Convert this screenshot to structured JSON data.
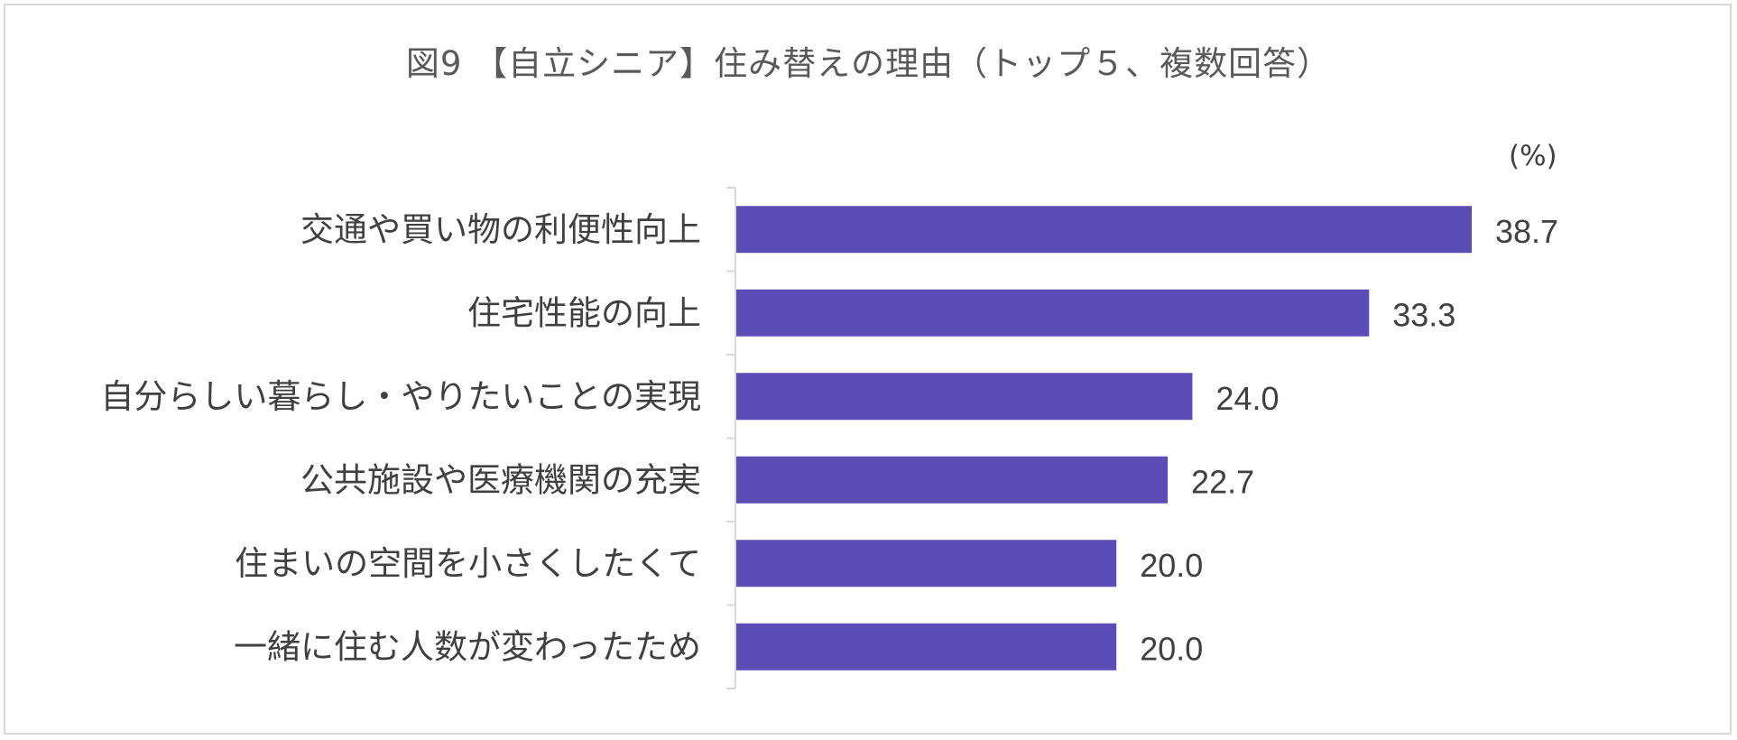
{
  "chart_data": {
    "type": "bar",
    "orientation": "horizontal",
    "title": "図9 【自立シニア】住み替えの理由（トップ５、複数回答）",
    "unit_label": "(%)",
    "categories": [
      "交通や買い物の利便性向上",
      "住宅性能の向上",
      "自分らしい暮らし・やりたいことの実現",
      "公共施設や医療機関の充実",
      "住まいの空間を小さくしたくて",
      "一緒に住む人数が変わったため"
    ],
    "values": [
      38.7,
      33.3,
      24.0,
      22.7,
      20.0,
      20.0
    ],
    "value_labels": [
      "38.7",
      "33.3",
      "24.0",
      "22.7",
      "20.0",
      "20.0"
    ],
    "bar_color": "#5b4db5",
    "xlim": [
      0,
      45
    ],
    "grid": false,
    "legend": "none"
  }
}
